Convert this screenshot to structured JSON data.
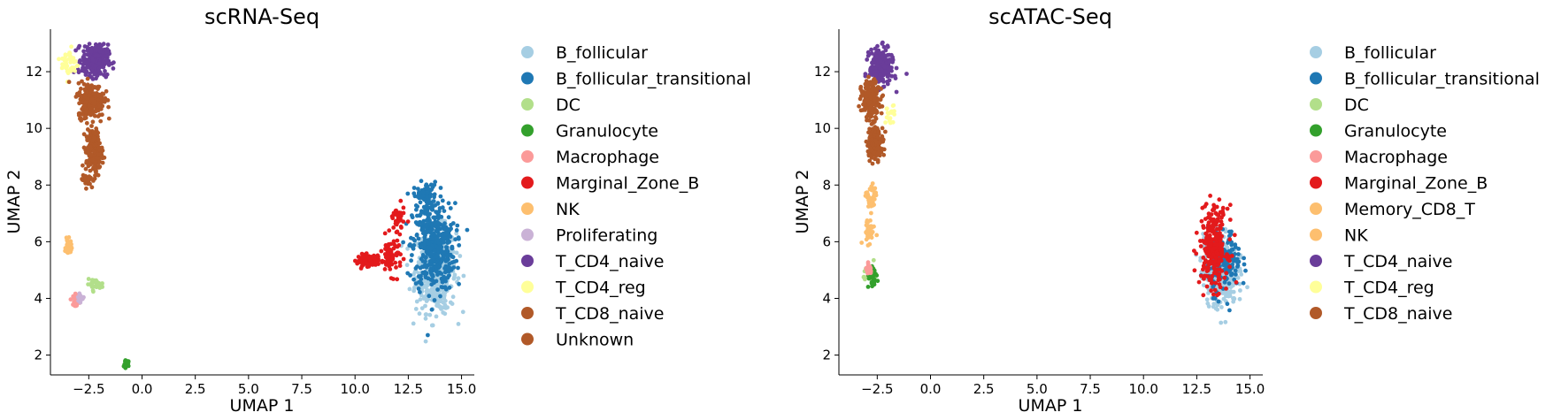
{
  "chart_data": [
    {
      "type": "scatter",
      "title": "scRNA-Seq",
      "xlabel": "UMAP 1",
      "ylabel": "UMAP 2",
      "xlim": [
        -4.3,
        15.6
      ],
      "ylim": [
        1.3,
        13.5
      ],
      "xticks": [
        "−2.5",
        "0.0",
        "2.5",
        "5.0",
        "7.5",
        "10.0",
        "12.5",
        "15.0"
      ],
      "xtick_values": [
        -2.5,
        0,
        2.5,
        5,
        7.5,
        10,
        12.5,
        15
      ],
      "yticks": [
        "2",
        "4",
        "6",
        "8",
        "10",
        "12"
      ],
      "ytick_values": [
        2,
        4,
        6,
        8,
        10,
        12
      ],
      "grid": false,
      "legend_placement": "right, outside",
      "series": [
        {
          "name": "B_follicular",
          "color": "#a6cee3",
          "clusters": [
            [
              13.8,
              5.0,
              0.85,
              1.35,
              500
            ]
          ]
        },
        {
          "name": "B_follicular_transitional",
          "color": "#1f78b4",
          "clusters": [
            [
              13.7,
              5.8,
              0.9,
              1.4,
              420
            ],
            [
              13.3,
              7.6,
              0.5,
              0.45,
              80
            ]
          ]
        },
        {
          "name": "DC",
          "color": "#b2df8a",
          "clusters": [
            [
              -2.2,
              4.5,
              0.35,
              0.15,
              30
            ]
          ]
        },
        {
          "name": "Granulocyte",
          "color": "#33a02c",
          "clusters": [
            [
              -0.7,
              1.7,
              0.1,
              0.1,
              40
            ]
          ]
        },
        {
          "name": "Macrophage",
          "color": "#fb9a99",
          "clusters": [
            [
              -3.1,
              3.95,
              0.12,
              0.18,
              35
            ]
          ]
        },
        {
          "name": "Marginal_Zone_B",
          "color": "#e31a1c",
          "clusters": [
            [
              10.6,
              5.35,
              0.45,
              0.18,
              110
            ],
            [
              11.7,
              5.5,
              0.45,
              0.6,
              70
            ],
            [
              12.0,
              6.8,
              0.3,
              0.4,
              40
            ]
          ]
        },
        {
          "name": "NK",
          "color": "#fdbf6f",
          "clusters": [
            [
              -3.45,
              5.8,
              0.12,
              0.25,
              50
            ]
          ]
        },
        {
          "name": "Proliferating",
          "color": "#cab2d6",
          "clusters": [
            [
              -2.9,
              4.0,
              0.15,
              0.12,
              12
            ]
          ]
        },
        {
          "name": "T_CD4_naive",
          "color": "#6a3d9a",
          "clusters": [
            [
              -2.2,
              12.4,
              0.55,
              0.5,
              280
            ]
          ]
        },
        {
          "name": "T_CD4_reg",
          "color": "#ffff99",
          "clusters": [
            [
              -3.4,
              12.3,
              0.35,
              0.5,
              40
            ]
          ]
        },
        {
          "name": "T_CD8_naive",
          "color": "#b15928",
          "clusters": [
            [
              -2.4,
              11.0,
              0.55,
              0.55,
              260
            ],
            [
              -2.25,
              9.2,
              0.35,
              0.7,
              180
            ]
          ]
        },
        {
          "name": "Unknown",
          "color": "#b15928",
          "clusters": [
            [
              -2.6,
              8.2,
              0.2,
              0.2,
              40
            ]
          ]
        }
      ]
    },
    {
      "type": "scatter",
      "title": "scATAC-Seq",
      "xlabel": "UMAP 1",
      "ylabel": "UMAP 2",
      "xlim": [
        -4.3,
        15.6
      ],
      "ylim": [
        1.3,
        13.5
      ],
      "xticks": [
        "−2.5",
        "0.0",
        "2.5",
        "5.0",
        "7.5",
        "10.0",
        "12.5",
        "15.0"
      ],
      "xtick_values": [
        -2.5,
        0,
        2.5,
        5,
        7.5,
        10,
        12.5,
        15
      ],
      "yticks": [
        "2",
        "4",
        "6",
        "8",
        "10",
        "12"
      ],
      "ytick_values": [
        2,
        4,
        6,
        8,
        10,
        12
      ],
      "grid": false,
      "legend_placement": "right, outside",
      "series": [
        {
          "name": "B_follicular",
          "color": "#a6cee3",
          "clusters": [
            [
              13.6,
              5.0,
              0.7,
              1.1,
              450
            ]
          ]
        },
        {
          "name": "B_follicular_transitional",
          "color": "#1f78b4",
          "clusters": [
            [
              13.8,
              5.3,
              0.7,
              1.0,
              160
            ]
          ]
        },
        {
          "name": "DC",
          "color": "#b2df8a",
          "clusters": [
            [
              -2.8,
              4.9,
              0.3,
              0.3,
              20
            ]
          ]
        },
        {
          "name": "Granulocyte",
          "color": "#33a02c",
          "clusters": [
            [
              -2.7,
              4.7,
              0.25,
              0.3,
              30
            ]
          ]
        },
        {
          "name": "Macrophage",
          "color": "#fb9a99",
          "clusters": [
            [
              -2.9,
              5.0,
              0.12,
              0.15,
              40
            ]
          ]
        },
        {
          "name": "Marginal_Zone_B",
          "color": "#e31a1c",
          "clusters": [
            [
              13.3,
              5.8,
              0.6,
              1.3,
              260
            ]
          ]
        },
        {
          "name": "Memory_CD8_T",
          "color": "#fdbf6f",
          "clusters": [
            [
              -2.9,
              6.4,
              0.25,
              0.4,
              40
            ]
          ]
        },
        {
          "name": "NK",
          "color": "#fdbf6f",
          "clusters": [
            [
              -2.8,
              7.5,
              0.2,
              0.5,
              40
            ]
          ]
        },
        {
          "name": "T_CD4_naive",
          "color": "#6a3d9a",
          "clusters": [
            [
              -2.3,
              12.2,
              0.5,
              0.55,
              260
            ]
          ]
        },
        {
          "name": "T_CD4_reg",
          "color": "#ffff99",
          "clusters": [
            [
              -1.9,
              10.5,
              0.2,
              0.3,
              20
            ]
          ]
        },
        {
          "name": "T_CD8_naive",
          "color": "#b15928",
          "clusters": [
            [
              -2.8,
              11.0,
              0.4,
              0.6,
              200
            ],
            [
              -2.6,
              9.5,
              0.35,
              0.5,
              150
            ]
          ]
        }
      ]
    }
  ]
}
